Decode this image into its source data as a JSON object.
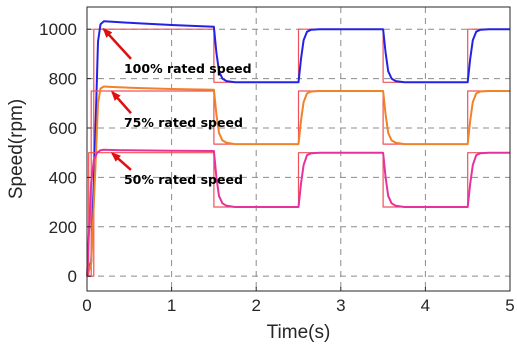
{
  "chart_data": {
    "type": "line",
    "xlabel": "Time(s)",
    "ylabel": "Speed(rpm)",
    "xlim": [
      0,
      5
    ],
    "ylim": [
      -60,
      1090
    ],
    "x_ticks": [
      "0",
      "1",
      "2",
      "3",
      "4",
      "5"
    ],
    "y_ticks": [
      "0",
      "200",
      "400",
      "600",
      "800",
      "1000"
    ],
    "grid": "dashed",
    "colors": {
      "ref": "#f0505a",
      "speed_100": "#2323e6",
      "speed_75": "#f08228",
      "speed_50": "#e6329b",
      "annotation_arrow": "#e01010"
    },
    "series": [
      {
        "id": "ref_100",
        "x": [
          0,
          0.08,
          0.08,
          1.5,
          1.5,
          2.5,
          2.5,
          3.5,
          3.5,
          4.5,
          4.5,
          5.0
        ],
        "values": [
          0,
          0,
          1000,
          1000,
          785,
          785,
          1000,
          1000,
          785,
          785,
          1000,
          1000
        ]
      },
      {
        "id": "speed_100",
        "x": [
          0,
          0.05,
          0.1,
          0.13,
          0.16,
          0.2,
          0.3,
          0.6,
          1.0,
          1.5,
          1.53,
          1.56,
          1.6,
          1.65,
          1.75,
          2.5,
          2.53,
          2.56,
          2.6,
          2.65,
          2.75,
          3.5,
          3.53,
          3.56,
          3.6,
          3.65,
          3.75,
          4.5,
          4.53,
          4.56,
          4.6,
          4.65,
          4.75,
          5.0
        ],
        "values": [
          0,
          60,
          600,
          950,
          1020,
          1032,
          1030,
          1024,
          1017,
          1010,
          905,
          830,
          800,
          790,
          785,
          785,
          880,
          955,
          990,
          998,
          1000,
          1000,
          905,
          830,
          800,
          790,
          785,
          785,
          880,
          955,
          990,
          998,
          1000,
          1000
        ]
      },
      {
        "id": "ref_75",
        "x": [
          0,
          0.05,
          0.05,
          1.5,
          1.5,
          2.5,
          2.5,
          3.5,
          3.5,
          4.5,
          4.5,
          5.0
        ],
        "values": [
          0,
          0,
          750,
          750,
          535,
          535,
          750,
          750,
          535,
          535,
          750,
          750
        ]
      },
      {
        "id": "speed_75",
        "x": [
          0,
          0.05,
          0.1,
          0.13,
          0.16,
          0.2,
          0.3,
          0.6,
          1.0,
          1.5,
          1.53,
          1.56,
          1.6,
          1.65,
          1.75,
          2.5,
          2.53,
          2.56,
          2.6,
          2.65,
          2.75,
          3.5,
          3.53,
          3.56,
          3.6,
          3.65,
          3.75,
          4.5,
          4.53,
          4.56,
          4.6,
          4.65,
          4.75,
          5.0
        ],
        "values": [
          0,
          50,
          450,
          700,
          760,
          768,
          766,
          762,
          758,
          755,
          655,
          580,
          550,
          540,
          535,
          535,
          630,
          705,
          740,
          748,
          750,
          750,
          655,
          580,
          550,
          540,
          535,
          535,
          630,
          705,
          740,
          748,
          750,
          750
        ]
      },
      {
        "id": "ref_50",
        "x": [
          0,
          0.02,
          0.02,
          1.5,
          1.5,
          2.5,
          2.5,
          3.5,
          3.5,
          4.5,
          4.5,
          5.0
        ],
        "values": [
          0,
          0,
          500,
          500,
          280,
          280,
          500,
          500,
          280,
          280,
          500,
          500
        ]
      },
      {
        "id": "speed_50",
        "x": [
          0,
          0.02,
          0.05,
          0.08,
          0.12,
          0.16,
          0.2,
          0.4,
          1.0,
          1.5,
          1.53,
          1.56,
          1.6,
          1.65,
          1.75,
          2.5,
          2.53,
          2.56,
          2.6,
          2.65,
          2.75,
          3.5,
          3.53,
          3.56,
          3.6,
          3.65,
          3.75,
          4.5,
          4.53,
          4.56,
          4.6,
          4.65,
          4.75,
          5.0
        ],
        "values": [
          0,
          150,
          380,
          470,
          500,
          510,
          512,
          510,
          508,
          507,
          400,
          325,
          295,
          285,
          280,
          280,
          375,
          450,
          490,
          498,
          500,
          500,
          400,
          325,
          295,
          285,
          280,
          280,
          375,
          450,
          490,
          498,
          500,
          500
        ]
      }
    ],
    "annotations": [
      {
        "text": "100% rated speed",
        "arrow_from": [
          0.52,
          880
        ],
        "arrow_to": [
          0.2,
          1000
        ]
      },
      {
        "text": "75% rated speed",
        "arrow_from": [
          0.52,
          660
        ],
        "arrow_to": [
          0.3,
          745
        ]
      },
      {
        "text": "50% rated speed",
        "arrow_from": [
          0.52,
          430
        ],
        "arrow_to": [
          0.3,
          497
        ]
      }
    ]
  }
}
